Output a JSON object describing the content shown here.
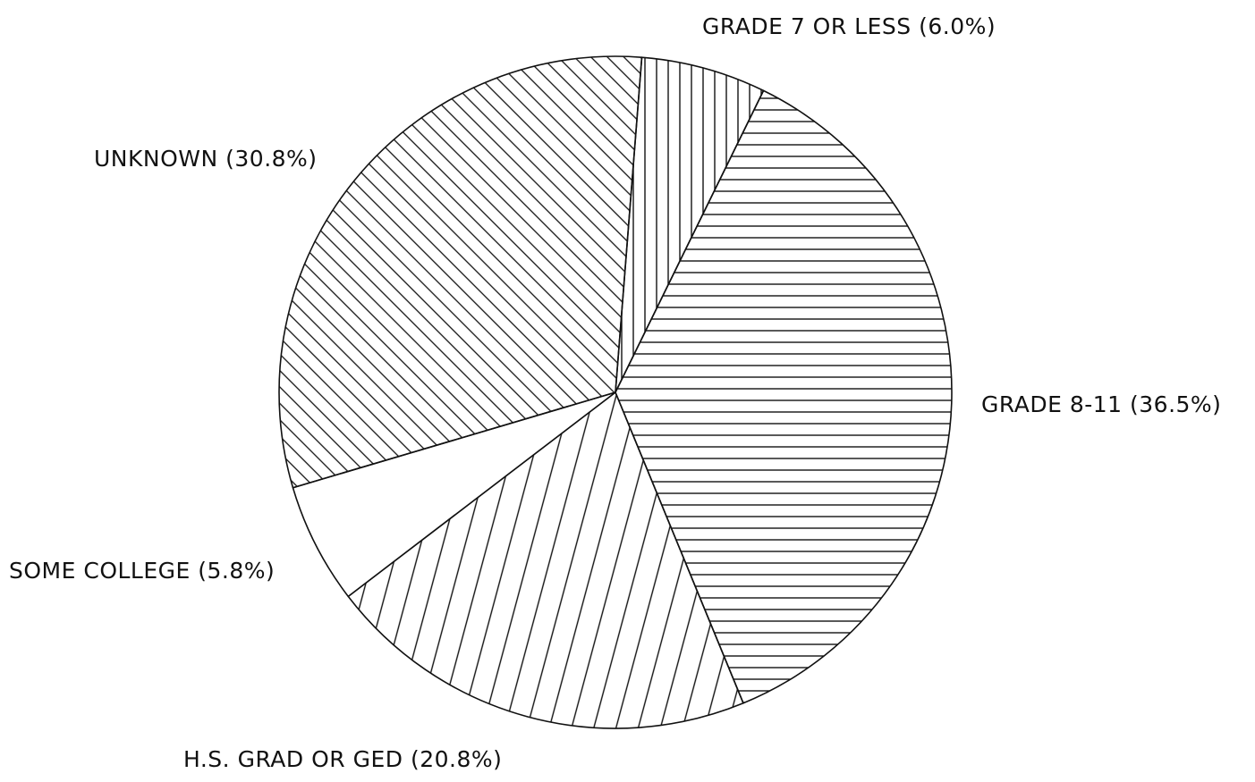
{
  "chart_data": {
    "type": "pie",
    "title": "",
    "start_angle_deg": 4.5,
    "direction": "clockwise",
    "slices": [
      {
        "label": "GRADE 7 OR LESS (6.0%)",
        "value": 6.0,
        "hatch": "vertical"
      },
      {
        "label": "GRADE 8-11 (36.5%)",
        "value": 36.5,
        "hatch": "horizontal"
      },
      {
        "label": "H.S. GRAD OR GED (20.8%)",
        "value": 20.8,
        "hatch": "diagonal-up"
      },
      {
        "label": "SOME COLLEGE (5.8%)",
        "value": 5.8,
        "hatch": "none"
      },
      {
        "label": "UNKNOWN (30.8%)",
        "value": 30.8,
        "hatch": "diagonal-down"
      }
    ]
  }
}
